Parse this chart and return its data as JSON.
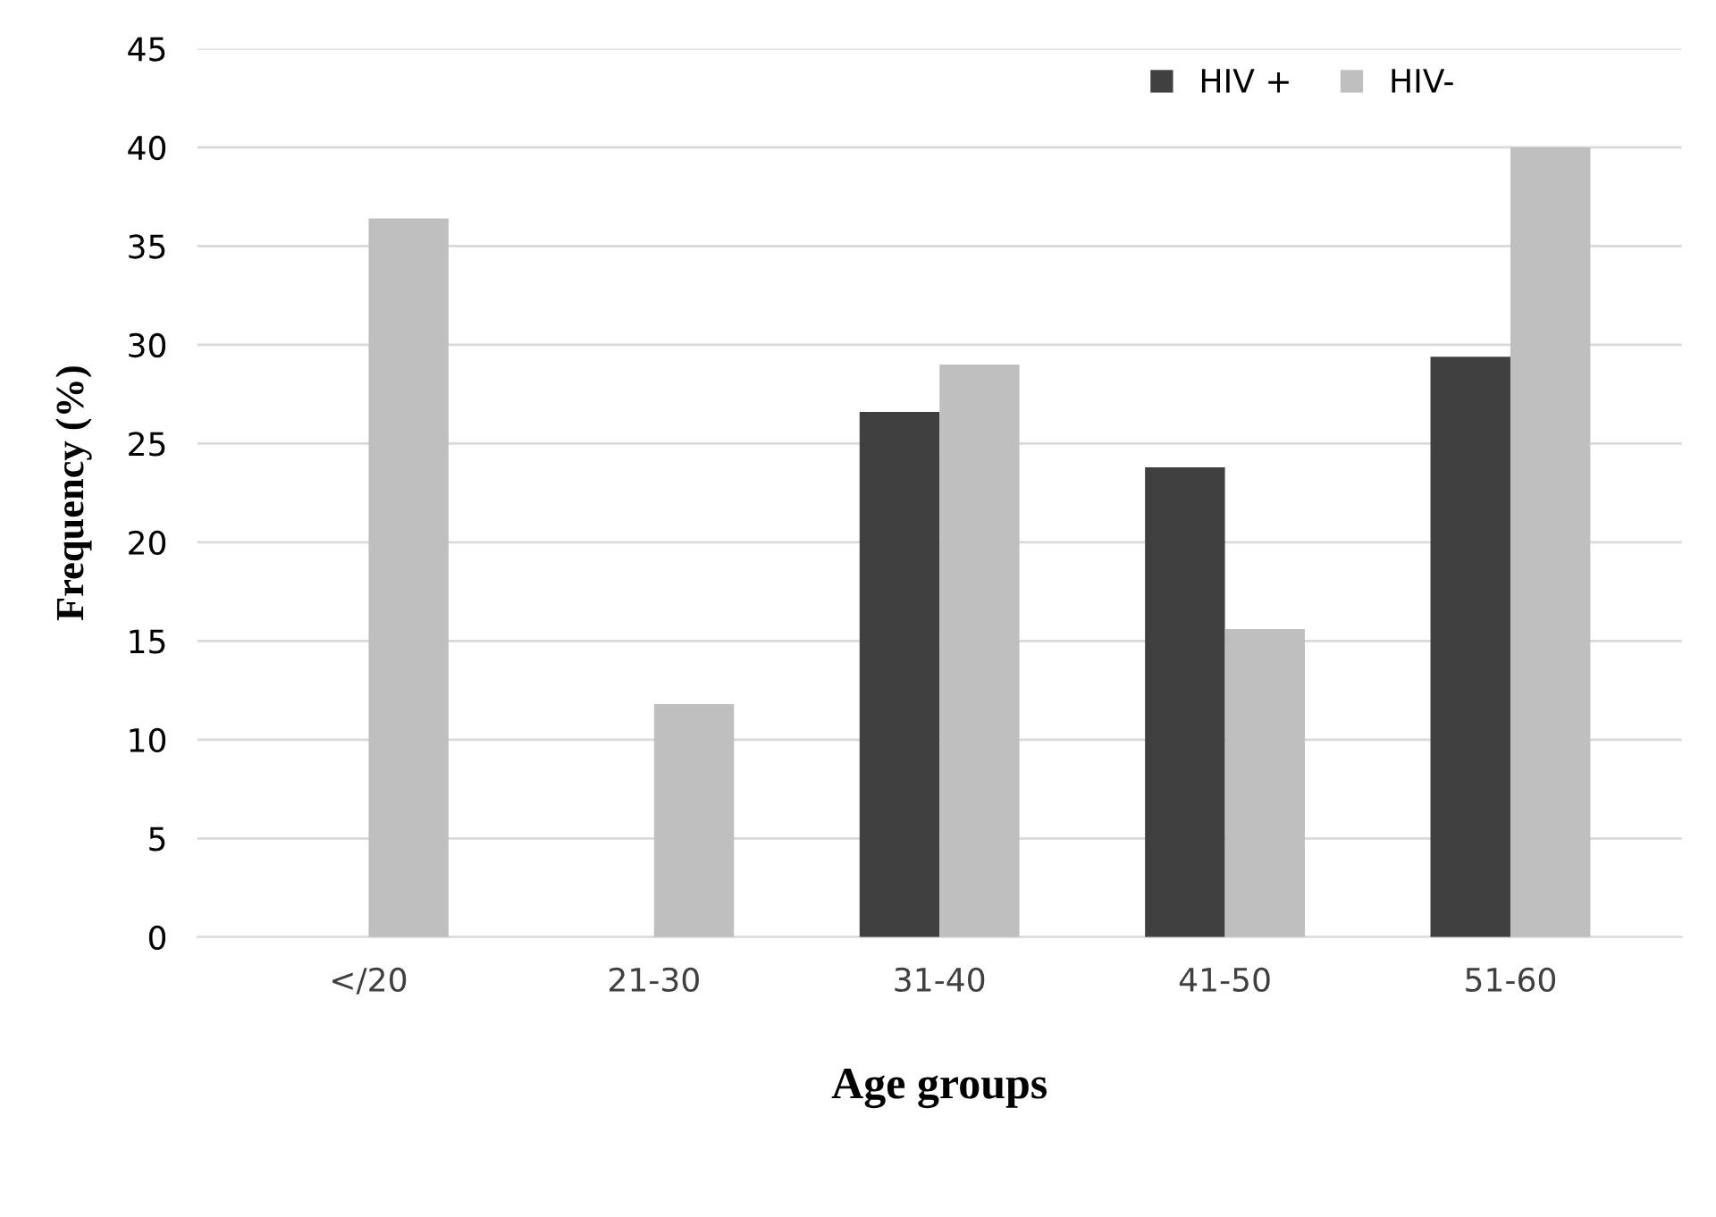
{
  "chart_data": {
    "type": "bar",
    "xlabel": "Age groups",
    "ylabel": "Frequency (%)",
    "categories": [
      "</20",
      "21-30",
      "31-40",
      "41-50",
      "51-60"
    ],
    "series": [
      {
        "name": "HIV +",
        "color": "#404040",
        "values": [
          0,
          0,
          26.6,
          23.8,
          29.4
        ]
      },
      {
        "name": "HIV-",
        "color": "#bfbfbf",
        "values": [
          36.4,
          11.8,
          29.0,
          15.6,
          40.0
        ]
      }
    ],
    "ylim": [
      0,
      45
    ],
    "yticks": [
      0,
      5,
      10,
      15,
      20,
      25,
      30,
      35,
      40,
      45
    ],
    "grid": "y",
    "legend": "top right"
  }
}
